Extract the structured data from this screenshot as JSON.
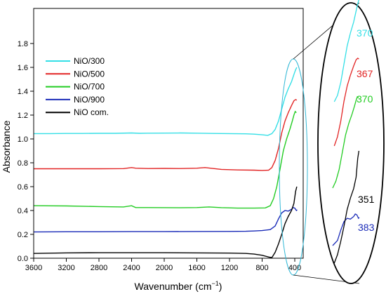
{
  "chart_data": {
    "type": "line",
    "xlabel": "Wavenumber (cm",
    "xlabel_sup": "−1",
    "xlabel_close": ")",
    "ylabel": "Absorbance",
    "xlim": [
      3600,
      200
    ],
    "ylim": [
      0.0,
      1.9
    ],
    "x_ticks": [
      3600,
      3200,
      2800,
      2400,
      2000,
      1600,
      1200,
      800,
      400
    ],
    "y_ticks": [
      "0.0",
      "0.2",
      "0.4",
      "0.6",
      "0.8",
      "1.0",
      "1.2",
      "1.4",
      "1.6",
      "1.8"
    ],
    "legend_position": "top-left",
    "series": [
      {
        "name": "NiO/300",
        "color": "#33dfe6",
        "points": [
          [
            3600,
            1.045
          ],
          [
            3400,
            1.045
          ],
          [
            3200,
            1.046
          ],
          [
            3000,
            1.046
          ],
          [
            2800,
            1.047
          ],
          [
            2600,
            1.047
          ],
          [
            2400,
            1.05
          ],
          [
            2300,
            1.047
          ],
          [
            2200,
            1.048
          ],
          [
            2000,
            1.049
          ],
          [
            1800,
            1.05
          ],
          [
            1600,
            1.048
          ],
          [
            1400,
            1.046
          ],
          [
            1200,
            1.045
          ],
          [
            1000,
            1.043
          ],
          [
            900,
            1.04
          ],
          [
            800,
            1.035
          ],
          [
            730,
            1.03
          ],
          [
            680,
            1.045
          ],
          [
            640,
            1.08
          ],
          [
            600,
            1.15
          ],
          [
            560,
            1.25
          ],
          [
            520,
            1.35
          ],
          [
            480,
            1.42
          ],
          [
            440,
            1.48
          ],
          [
            410,
            1.54
          ],
          [
            390,
            1.58
          ],
          [
            375,
            1.6
          ]
        ]
      },
      {
        "name": "NiO/500",
        "color": "#e22424",
        "points": [
          [
            3600,
            0.75
          ],
          [
            3200,
            0.75
          ],
          [
            2800,
            0.75
          ],
          [
            2500,
            0.751
          ],
          [
            2400,
            0.76
          ],
          [
            2350,
            0.755
          ],
          [
            2200,
            0.752
          ],
          [
            2000,
            0.753
          ],
          [
            1800,
            0.752
          ],
          [
            1600,
            0.755
          ],
          [
            1500,
            0.76
          ],
          [
            1300,
            0.745
          ],
          [
            1100,
            0.74
          ],
          [
            900,
            0.738
          ],
          [
            800,
            0.736
          ],
          [
            720,
            0.738
          ],
          [
            680,
            0.76
          ],
          [
            640,
            0.82
          ],
          [
            600,
            0.92
          ],
          [
            560,
            1.05
          ],
          [
            520,
            1.15
          ],
          [
            480,
            1.22
          ],
          [
            440,
            1.28
          ],
          [
            410,
            1.32
          ],
          [
            390,
            1.33
          ],
          [
            375,
            1.325
          ]
        ]
      },
      {
        "name": "NiO/700",
        "color": "#22cc22",
        "points": [
          [
            3600,
            0.44
          ],
          [
            3200,
            0.438
          ],
          [
            2800,
            0.433
          ],
          [
            2500,
            0.43
          ],
          [
            2400,
            0.44
          ],
          [
            2350,
            0.425
          ],
          [
            2200,
            0.425
          ],
          [
            2000,
            0.424
          ],
          [
            1800,
            0.423
          ],
          [
            1600,
            0.425
          ],
          [
            1450,
            0.43
          ],
          [
            1300,
            0.424
          ],
          [
            1100,
            0.42
          ],
          [
            900,
            0.42
          ],
          [
            760,
            0.422
          ],
          [
            700,
            0.44
          ],
          [
            660,
            0.5
          ],
          [
            620,
            0.6
          ],
          [
            580,
            0.75
          ],
          [
            540,
            0.9
          ],
          [
            500,
            1.0
          ],
          [
            460,
            1.08
          ],
          [
            430,
            1.15
          ],
          [
            410,
            1.2
          ],
          [
            395,
            1.23
          ],
          [
            380,
            1.22
          ]
        ]
      },
      {
        "name": "NiO/900",
        "color": "#1a2bb8",
        "points": [
          [
            3600,
            0.22
          ],
          [
            3200,
            0.222
          ],
          [
            2800,
            0.222
          ],
          [
            2400,
            0.223
          ],
          [
            2000,
            0.223
          ],
          [
            1600,
            0.224
          ],
          [
            1200,
            0.225
          ],
          [
            1000,
            0.226
          ],
          [
            900,
            0.228
          ],
          [
            800,
            0.232
          ],
          [
            700,
            0.24
          ],
          [
            640,
            0.27
          ],
          [
            600,
            0.33
          ],
          [
            560,
            0.38
          ],
          [
            520,
            0.4
          ],
          [
            480,
            0.395
          ],
          [
            440,
            0.41
          ],
          [
            420,
            0.425
          ],
          [
            400,
            0.42
          ],
          [
            380,
            0.4
          ],
          [
            370,
            0.405
          ]
        ]
      },
      {
        "name": "NiO com.",
        "color": "#000000",
        "points": [
          [
            3600,
            0.04
          ],
          [
            3200,
            0.045
          ],
          [
            2800,
            0.046
          ],
          [
            2400,
            0.046
          ],
          [
            2000,
            0.046
          ],
          [
            1600,
            0.045
          ],
          [
            1200,
            0.043
          ],
          [
            1000,
            0.04
          ],
          [
            900,
            0.035
          ],
          [
            800,
            0.025
          ],
          [
            720,
            0.01
          ],
          [
            680,
            0.005
          ],
          [
            640,
            0.05
          ],
          [
            600,
            0.12
          ],
          [
            560,
            0.2
          ],
          [
            520,
            0.29
          ],
          [
            480,
            0.35
          ],
          [
            440,
            0.4
          ],
          [
            410,
            0.46
          ],
          [
            390,
            0.56
          ],
          [
            375,
            0.6
          ]
        ]
      }
    ],
    "zoom_labels": [
      {
        "text": "370",
        "color": "#33dfe6"
      },
      {
        "text": "367",
        "color": "#e22424"
      },
      {
        "text": "370",
        "color": "#22cc22"
      },
      {
        "text": "351",
        "color": "#000000"
      },
      {
        "text": "383",
        "color": "#1a2bb8"
      }
    ],
    "zoom_ellipse_color": "#33b8d6"
  }
}
